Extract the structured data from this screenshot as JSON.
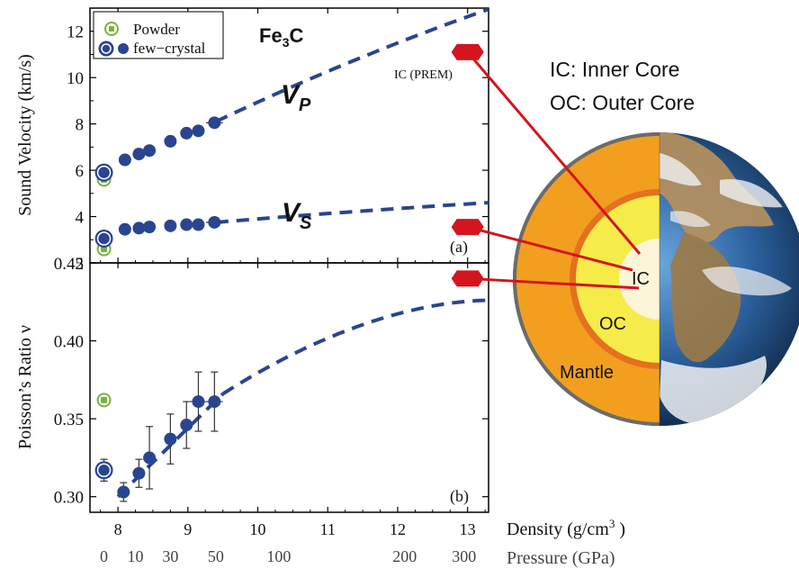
{
  "chart_data": [
    {
      "panel": "(a)",
      "type": "scatter",
      "title": "Fe3C",
      "xlabel": "Density (g/cm3)",
      "ylabel": "Sound Velocity (km/s)",
      "xlim": [
        7.6,
        13.3
      ],
      "ylim": [
        2,
        13
      ],
      "x_ticks": [
        8,
        9,
        10,
        11,
        12,
        13
      ],
      "y_ticks": [
        2,
        4,
        6,
        8,
        10,
        12
      ],
      "pressure_ticks": [
        {
          "label": "0",
          "density": 7.8
        },
        {
          "label": "10",
          "density": 8.25
        },
        {
          "label": "30",
          "density": 8.75
        },
        {
          "label": "50",
          "density": 9.4
        },
        {
          "label": "100",
          "density": 10.3
        },
        {
          "label": "200",
          "density": 12.1
        },
        {
          "label": "300",
          "density": 12.95
        }
      ],
      "series": [
        {
          "name": "Powder",
          "marker": "green-open-square",
          "points": [
            {
              "x": 7.8,
              "y": 5.6
            },
            {
              "x": 7.8,
              "y": 2.6
            }
          ]
        },
        {
          "name": "few-crystal",
          "marker": "blue-circle",
          "points": [
            {
              "x": 7.8,
              "y": 5.9,
              "big": true
            },
            {
              "x": 8.1,
              "y": 6.45
            },
            {
              "x": 8.3,
              "y": 6.7
            },
            {
              "x": 8.45,
              "y": 6.85
            },
            {
              "x": 8.75,
              "y": 7.25
            },
            {
              "x": 8.98,
              "y": 7.6
            },
            {
              "x": 9.15,
              "y": 7.7
            },
            {
              "x": 9.38,
              "y": 8.05,
              "xerr": 0.12
            },
            {
              "x": 7.8,
              "y": 3.05,
              "big": true
            },
            {
              "x": 8.1,
              "y": 3.45
            },
            {
              "x": 8.3,
              "y": 3.5
            },
            {
              "x": 8.45,
              "y": 3.55
            },
            {
              "x": 8.75,
              "y": 3.6
            },
            {
              "x": 8.98,
              "y": 3.65
            },
            {
              "x": 9.15,
              "y": 3.65
            },
            {
              "x": 9.38,
              "y": 3.75,
              "xerr": 0.12
            }
          ]
        }
      ],
      "fits": [
        {
          "name": "V_P",
          "label": "V",
          "subscript": "P",
          "x": [
            9.4,
            13.3
          ],
          "y": [
            8.1,
            12.95
          ]
        },
        {
          "name": "V_S",
          "label": "V",
          "subscript": "S",
          "x": [
            9.4,
            13.3
          ],
          "y": [
            3.75,
            4.6
          ]
        }
      ],
      "reference": {
        "label": "IC (PREM)",
        "x": 13.0,
        "values": [
          11.1,
          3.55
        ]
      },
      "panel_label": "(a)"
    },
    {
      "panel": "(b)",
      "type": "scatter",
      "ylabel": "Poisson’s Ratio ν",
      "xlim": [
        7.6,
        13.3
      ],
      "ylim": [
        0.29,
        0.45
      ],
      "y_ticks": [
        "0.30",
        "0.35",
        "0.40",
        "0.45"
      ],
      "series": [
        {
          "name": "Powder",
          "marker": "green-open-square",
          "points": [
            {
              "x": 7.8,
              "y": 0.362,
              "yerr": 0.003
            }
          ]
        },
        {
          "name": "few-crystal",
          "marker": "blue-circle",
          "points": [
            {
              "x": 7.8,
              "y": 0.317,
              "yerr": 0.007,
              "big": true
            },
            {
              "x": 8.08,
              "y": 0.303,
              "yerr": 0.006
            },
            {
              "x": 8.3,
              "y": 0.315,
              "yerr": 0.009
            },
            {
              "x": 8.45,
              "y": 0.325,
              "yerr": 0.02
            },
            {
              "x": 8.75,
              "y": 0.337,
              "yerr": 0.016
            },
            {
              "x": 8.98,
              "y": 0.346,
              "yerr": 0.015
            },
            {
              "x": 9.15,
              "y": 0.361,
              "yerr": 0.019,
              "xerr": 0.12
            },
            {
              "x": 9.38,
              "y": 0.361,
              "yerr": 0.019,
              "xerr": 0.12
            }
          ]
        }
      ],
      "fit": {
        "x": [
          9.5,
          13.3
        ],
        "y": [
          0.366,
          0.426
        ]
      },
      "reference": {
        "x": 13.0,
        "value": 0.44
      },
      "panel_label": "(b)"
    }
  ],
  "legend": {
    "items": [
      {
        "label": "Powder"
      },
      {
        "label": "few−crystal"
      }
    ]
  },
  "axis": {
    "density_label": "Density (g/cm",
    "density_sup": "3",
    "density_close": " )",
    "pressure_label": "Pressure (GPa)"
  },
  "earth": {
    "key_ic": "IC: Inner Core",
    "key_oc": "OC: Outer Core",
    "label_ic": "IC",
    "label_oc": "OC",
    "label_mantle": "Mantle"
  },
  "colors": {
    "blue": "#2a4590",
    "green": "#78b43c",
    "red": "#d4141e",
    "mantle": "#f29f1f",
    "outer_core": "#f5ec49",
    "inner_core": "#fdf5d8"
  }
}
